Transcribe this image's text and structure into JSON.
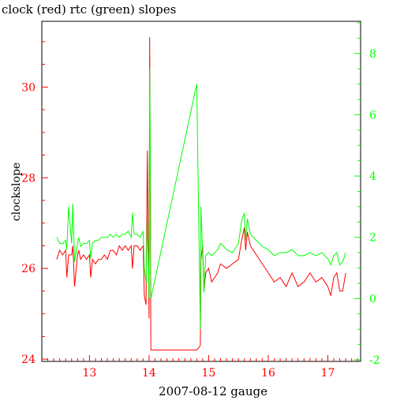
{
  "chart_data": {
    "type": "line",
    "title": "clock (red) rtc (green) slopes",
    "xlabel": "2007-08-12 gauge",
    "ylabel": "clockslope",
    "xlim": [
      12.2,
      17.55
    ],
    "ylim_left": [
      23.95,
      31.45
    ],
    "ylim_right": [
      -2.05,
      9.05
    ],
    "x_ticks": [
      "13",
      "14",
      "15",
      "16",
      "17"
    ],
    "y_left_ticks": [
      "24",
      "26",
      "28",
      "30"
    ],
    "y_right_ticks": [
      "-2",
      "0",
      "2",
      "4",
      "6",
      "8"
    ],
    "grid": false,
    "colors": {
      "clock": "#ff0000",
      "rtc": "#00ff00",
      "left_axis_labels": "#ff0000",
      "right_axis_labels": "#00ff00",
      "x_tick_labels": "#ff0000",
      "frame": "#000000"
    },
    "series": [
      {
        "name": "clock",
        "axis": "left",
        "color": "#ff0000",
        "x": [
          12.45,
          12.5,
          12.55,
          12.6,
          12.62,
          12.65,
          12.7,
          12.72,
          12.75,
          12.8,
          12.82,
          12.85,
          12.9,
          12.95,
          13.0,
          13.02,
          13.05,
          13.1,
          13.15,
          13.2,
          13.25,
          13.3,
          13.35,
          13.4,
          13.45,
          13.5,
          13.55,
          13.6,
          13.65,
          13.7,
          13.72,
          13.75,
          13.8,
          13.85,
          13.9,
          13.92,
          13.95,
          13.97,
          14.0,
          14.01,
          14.02,
          14.03,
          14.8,
          14.86,
          14.87,
          14.9,
          14.92,
          14.95,
          15.0,
          15.05,
          15.1,
          15.15,
          15.2,
          15.3,
          15.4,
          15.5,
          15.55,
          15.6,
          15.62,
          15.65,
          15.7,
          15.8,
          15.9,
          16.0,
          16.1,
          16.2,
          16.3,
          16.4,
          16.5,
          16.6,
          16.7,
          16.8,
          16.9,
          17.0,
          17.05,
          17.1,
          17.15,
          17.2,
          17.25,
          17.3
        ],
        "y": [
          26.2,
          26.4,
          26.3,
          26.4,
          25.8,
          26.3,
          26.3,
          26.5,
          25.6,
          26.3,
          26.4,
          26.2,
          26.3,
          26.2,
          26.3,
          25.8,
          26.2,
          26.1,
          26.2,
          26.2,
          26.3,
          26.2,
          26.4,
          26.4,
          26.3,
          26.5,
          26.4,
          26.5,
          26.4,
          26.5,
          26.0,
          26.5,
          26.5,
          26.4,
          26.5,
          25.4,
          25.2,
          28.6,
          24.9,
          31.1,
          28.0,
          24.2,
          24.2,
          24.3,
          26.2,
          26.5,
          25.5,
          25.9,
          26.0,
          25.7,
          25.8,
          25.9,
          26.1,
          26.0,
          26.1,
          26.2,
          26.6,
          26.9,
          26.4,
          26.8,
          26.5,
          26.3,
          26.1,
          25.9,
          25.7,
          25.8,
          25.6,
          25.9,
          25.6,
          25.7,
          25.9,
          25.7,
          25.8,
          25.6,
          25.4,
          25.8,
          25.9,
          25.5,
          25.5,
          25.9
        ]
      },
      {
        "name": "rtc",
        "axis": "right",
        "color": "#00ff00",
        "x": [
          12.45,
          12.5,
          12.55,
          12.6,
          12.62,
          12.65,
          12.7,
          12.72,
          12.75,
          12.8,
          12.82,
          12.85,
          12.9,
          12.95,
          13.0,
          13.02,
          13.05,
          13.1,
          13.15,
          13.2,
          13.25,
          13.3,
          13.35,
          13.4,
          13.45,
          13.5,
          13.55,
          13.6,
          13.65,
          13.7,
          13.72,
          13.75,
          13.8,
          13.85,
          13.9,
          13.92,
          13.95,
          13.97,
          14.0,
          14.01,
          14.02,
          14.03,
          14.8,
          14.86,
          14.87,
          14.9,
          14.92,
          14.95,
          15.0,
          15.05,
          15.1,
          15.15,
          15.2,
          15.3,
          15.4,
          15.5,
          15.55,
          15.6,
          15.62,
          15.65,
          15.7,
          15.8,
          15.9,
          16.0,
          16.1,
          16.2,
          16.3,
          16.4,
          16.5,
          16.6,
          16.7,
          16.8,
          16.9,
          17.0,
          17.05,
          17.1,
          17.15,
          17.2,
          17.25,
          17.3
        ],
        "y": [
          2.0,
          1.8,
          1.8,
          1.9,
          1.6,
          3.0,
          1.8,
          3.1,
          1.2,
          1.8,
          2.0,
          1.7,
          1.8,
          1.8,
          1.9,
          1.3,
          1.8,
          1.9,
          1.9,
          2.0,
          2.0,
          2.0,
          2.1,
          2.0,
          2.1,
          2.0,
          2.1,
          2.1,
          2.2,
          2.0,
          2.8,
          2.1,
          2.1,
          2.0,
          2.2,
          1.0,
          0.5,
          2.5,
          0.0,
          7.5,
          5.0,
          0.0,
          7.0,
          -1.0,
          3.0,
          1.5,
          0.2,
          1.4,
          1.5,
          1.4,
          1.5,
          1.6,
          1.8,
          1.6,
          1.5,
          1.8,
          2.5,
          2.8,
          1.9,
          2.6,
          2.1,
          1.9,
          1.7,
          1.6,
          1.4,
          1.5,
          1.5,
          1.6,
          1.4,
          1.4,
          1.5,
          1.4,
          1.5,
          1.3,
          1.1,
          1.4,
          1.5,
          1.1,
          1.2,
          1.5
        ]
      }
    ]
  }
}
